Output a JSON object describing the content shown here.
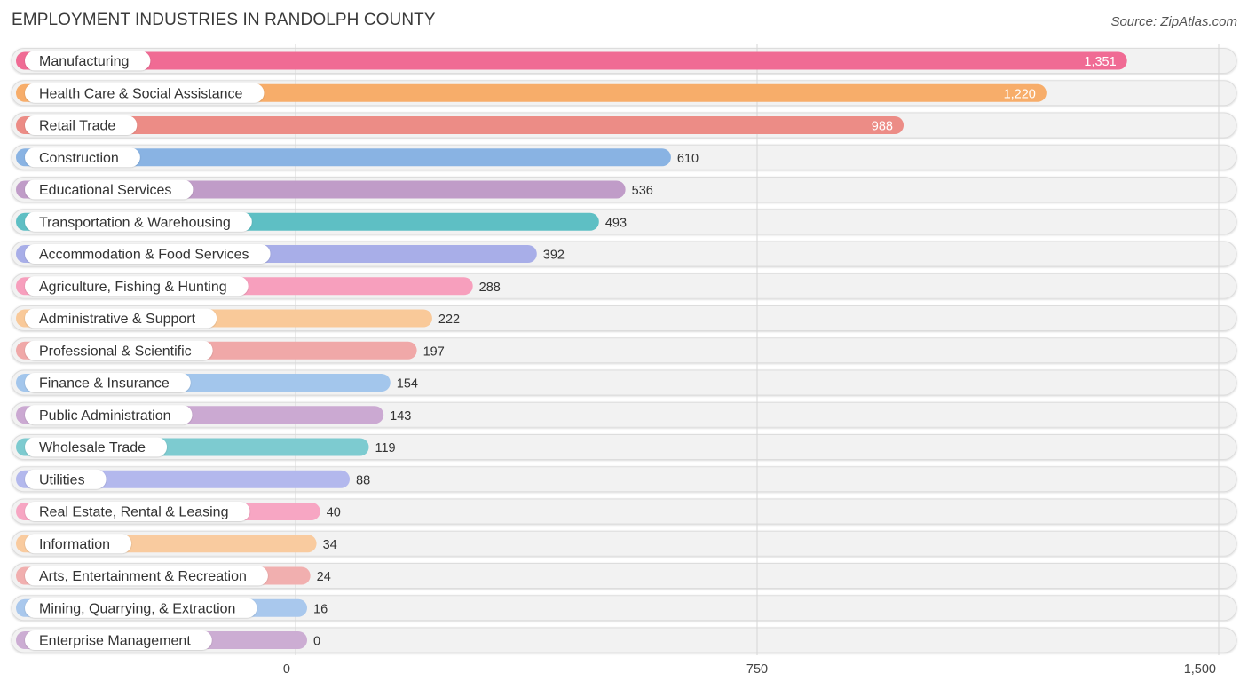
{
  "header": {
    "title": "EMPLOYMENT INDUSTRIES IN RANDOLPH COUNTY",
    "source": "Source: ZipAtlas.com"
  },
  "chart_data": {
    "type": "bar",
    "orientation": "horizontal",
    "title": "EMPLOYMENT INDUSTRIES IN RANDOLPH COUNTY",
    "xlabel": "",
    "ylabel": "",
    "xlim": [
      0,
      1500
    ],
    "xticks": [
      0,
      750,
      1500
    ],
    "xtick_labels": [
      "0",
      "750",
      "1,500"
    ],
    "grid": true,
    "categories": [
      "Manufacturing",
      "Health Care & Social Assistance",
      "Retail Trade",
      "Construction",
      "Educational Services",
      "Transportation & Warehousing",
      "Accommodation & Food Services",
      "Agriculture, Fishing & Hunting",
      "Administrative & Support",
      "Professional & Scientific",
      "Finance & Insurance",
      "Public Administration",
      "Wholesale Trade",
      "Utilities",
      "Real Estate, Rental & Leasing",
      "Information",
      "Arts, Entertainment & Recreation",
      "Mining, Quarrying, & Extraction",
      "Enterprise Management"
    ],
    "values": [
      1351,
      1220,
      988,
      610,
      536,
      493,
      392,
      288,
      222,
      197,
      154,
      143,
      119,
      88,
      40,
      34,
      24,
      16,
      0
    ],
    "value_labels": [
      "1,351",
      "1,220",
      "988",
      "610",
      "536",
      "493",
      "392",
      "288",
      "222",
      "197",
      "154",
      "143",
      "119",
      "88",
      "40",
      "34",
      "24",
      "16",
      "0"
    ],
    "colors": [
      "#f06b94",
      "#f7ad6a",
      "#ec8c86",
      "#89b3e3",
      "#c09cc8",
      "#5ebfc4",
      "#a8aee8",
      "#f79fbd",
      "#f9c999",
      "#f0a8a8",
      "#a3c6ec",
      "#cba9d2",
      "#7dcbd0",
      "#b3b8ed",
      "#f7a6c3",
      "#f9cb9f",
      "#f1afaf",
      "#a9c8ed",
      "#ccadd3"
    ]
  }
}
